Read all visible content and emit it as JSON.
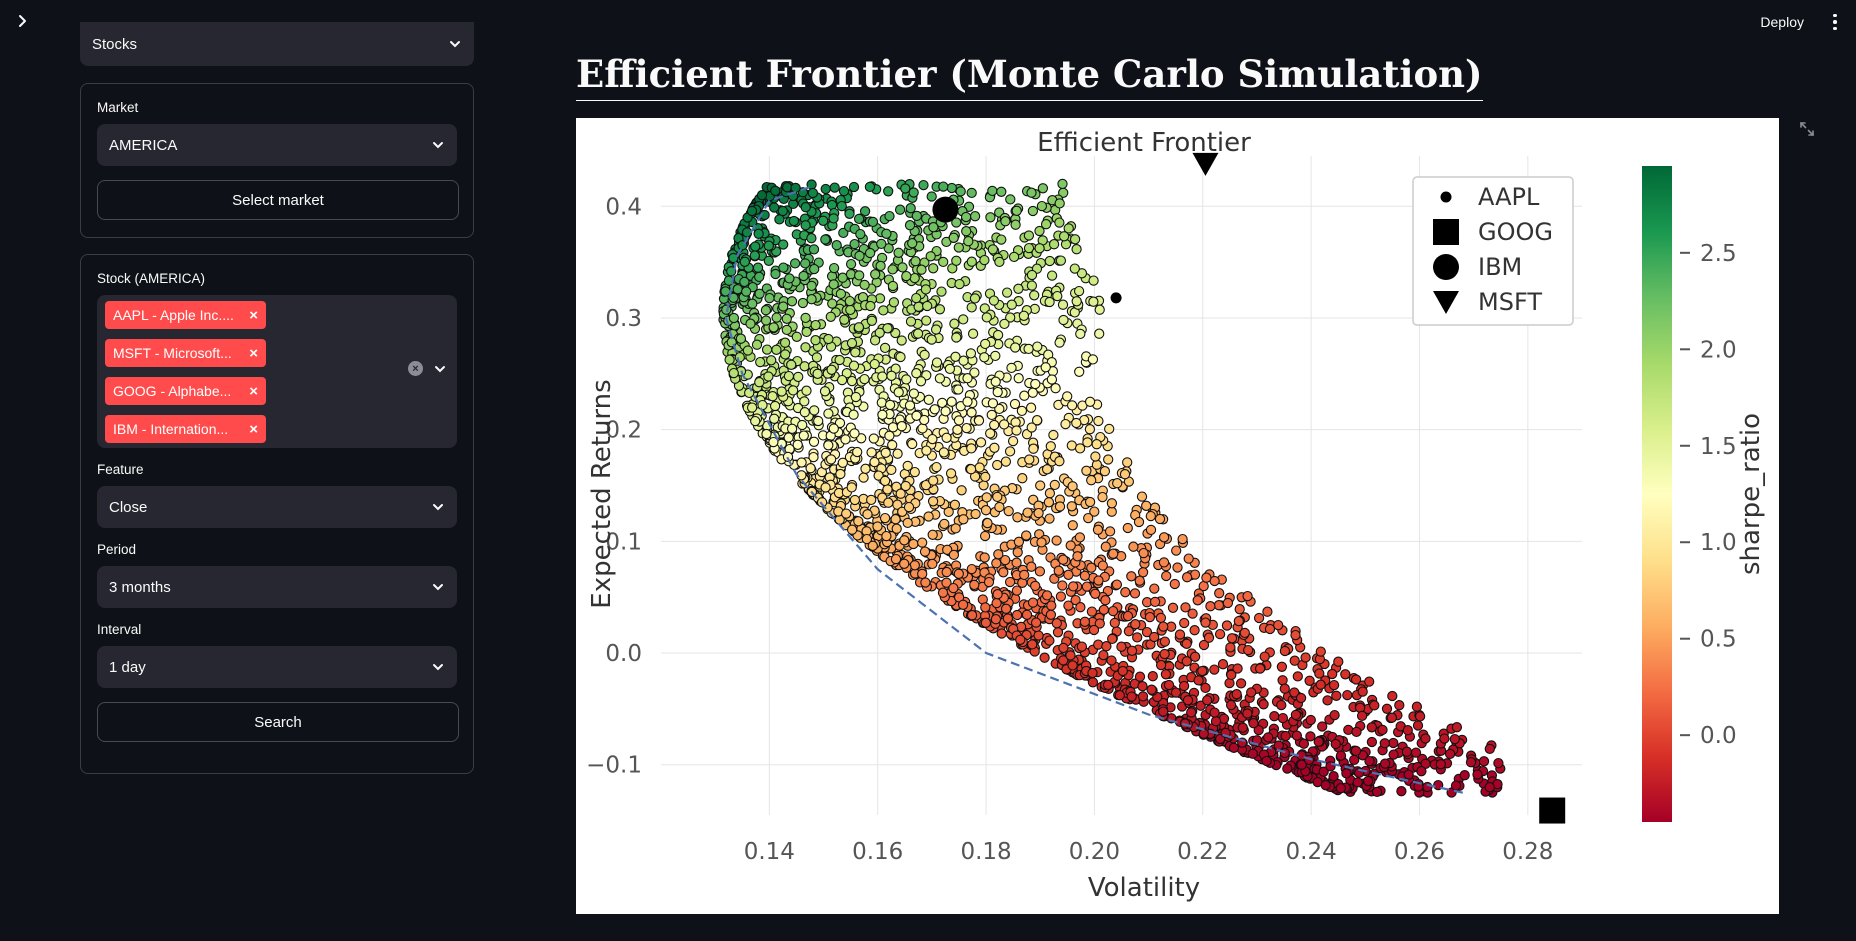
{
  "app": {
    "deploy_label": "Deploy",
    "main_title": "Efficient Frontier (Monte Carlo Simulation)"
  },
  "sidebar": {
    "top_select_value": "Stocks",
    "market_label": "Market",
    "market_value": "AMERICA",
    "select_market_label": "Select market",
    "stock_label": "Stock (AMERICA)",
    "stock_tags": [
      "AAPL - Apple Inc....",
      "MSFT - Microsoft...",
      "GOOG - Alphabe...",
      "IBM - Internation..."
    ],
    "feature_label": "Feature",
    "feature_value": "Close",
    "period_label": "Period",
    "period_value": "3 months",
    "interval_label": "Interval",
    "interval_value": "1 day",
    "search_label": "Search"
  },
  "chart_data": {
    "type": "scatter",
    "title": "Efficient Frontier",
    "xlabel": "Volatility",
    "ylabel": "Expected Returns",
    "xlim": [
      0.12,
      0.29
    ],
    "ylim": [
      -0.145,
      0.445
    ],
    "xticks": [
      0.14,
      0.16,
      0.18,
      0.2,
      0.22,
      0.24,
      0.26,
      0.28
    ],
    "xtick_labels": [
      "0.14",
      "0.16",
      "0.18",
      "0.20",
      "0.22",
      "0.24",
      "0.26",
      "0.28"
    ],
    "yticks": [
      -0.1,
      0.0,
      0.1,
      0.2,
      0.3,
      0.4
    ],
    "ytick_labels": [
      "−0.1",
      "0.0",
      "0.1",
      "0.2",
      "0.3",
      "0.4"
    ],
    "grid": true,
    "colorbar": {
      "label": "sharpe_ratio",
      "min": -0.45,
      "max": 2.95,
      "ticks": [
        0.0,
        0.5,
        1.0,
        1.5,
        2.0,
        2.5
      ],
      "tick_labels": [
        "0.0",
        "0.5",
        "1.0",
        "1.5",
        "2.0",
        "2.5"
      ],
      "colormap": "RdYlGn",
      "colors": [
        "#a50026",
        "#d73027",
        "#f46d43",
        "#fdae61",
        "#fee08b",
        "#ffffbf",
        "#d9ef8b",
        "#a6d96a",
        "#66bd63",
        "#1a9850",
        "#006837"
      ]
    },
    "simulation": {
      "volatility_range": [
        0.13,
        0.275
      ],
      "returns_range": [
        -0.125,
        0.42
      ]
    },
    "frontier": {
      "style": "dashed",
      "color": "#4c72b0",
      "points": [
        {
          "x": 0.268,
          "y": -0.125
        },
        {
          "x": 0.24,
          "y": -0.095
        },
        {
          "x": 0.21,
          "y": -0.055
        },
        {
          "x": 0.18,
          "y": 0.0
        },
        {
          "x": 0.16,
          "y": 0.075
        },
        {
          "x": 0.145,
          "y": 0.16
        },
        {
          "x": 0.135,
          "y": 0.25
        },
        {
          "x": 0.132,
          "y": 0.3
        },
        {
          "x": 0.134,
          "y": 0.355
        },
        {
          "x": 0.14,
          "y": 0.405
        },
        {
          "x": 0.148,
          "y": 0.418
        }
      ]
    },
    "markers": [
      {
        "name": "AAPL",
        "shape": "small-circle",
        "x": 0.204,
        "y": 0.318
      },
      {
        "name": "GOOG",
        "shape": "square",
        "x": 0.2845,
        "y": -0.141
      },
      {
        "name": "IBM",
        "shape": "circle",
        "x": 0.1725,
        "y": 0.397
      },
      {
        "name": "MSFT",
        "shape": "triangle-down",
        "x": 0.2205,
        "y": 0.438
      }
    ],
    "legend": {
      "placement": "top-right",
      "entries": [
        {
          "label": "AAPL",
          "shape": "small-circle"
        },
        {
          "label": "GOOG",
          "shape": "square"
        },
        {
          "label": "IBM",
          "shape": "circle"
        },
        {
          "label": "MSFT",
          "shape": "triangle-down"
        }
      ]
    }
  }
}
